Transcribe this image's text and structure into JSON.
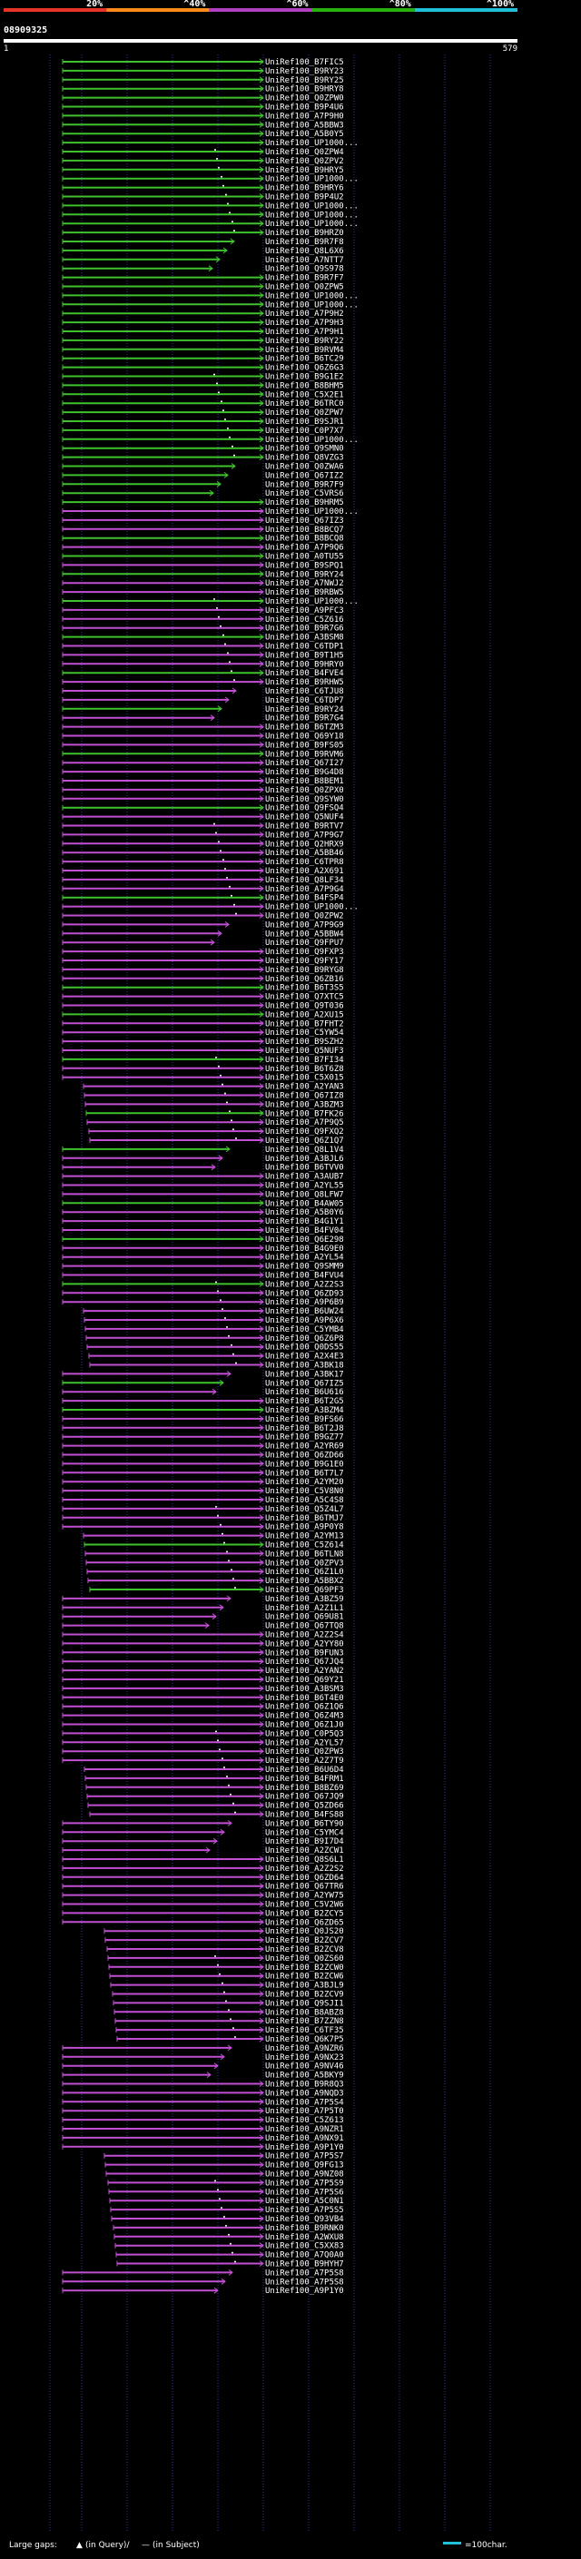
{
  "colors": {
    "bg": "#000000",
    "bin20": "#e8332b",
    "bin40": "#ff8c1a",
    "bin60": "#b040c0",
    "bin80": "#29b30e",
    "bin100": "#22c0d8",
    "magenta_hit": "#c24fd3",
    "green_hit": "#3fc22e",
    "query_bar": "#ffffff",
    "grid": "#2a3aa8",
    "text": "#ffffff",
    "marker": "#ffffff"
  },
  "header": {
    "scale_labels": [
      "20%",
      "^40%",
      "^60%",
      "^80%",
      "^100%"
    ],
    "query_id": "08909325",
    "start_coord": "1",
    "end_coord": "579"
  },
  "legend": {
    "large_gaps_label": "Large gaps:",
    "in_query_label": "(in Query)/",
    "in_subject_label": "(in Subject)",
    "scale_label": "=100char."
  },
  "hits": [
    "UniRef100_B7FIC5",
    "UniRef100_B9RY23",
    "UniRef100_B9RY25",
    "UniRef100_B9HRY8",
    "UniRef100_Q0ZPW0",
    "UniRef100_B9P4U6",
    "UniRef100_A7P9H0",
    "UniRef100_A5BBW3",
    "UniRef100_A5B0Y5",
    "UniRef100_UP1000...",
    "UniRef100_Q0ZPW4",
    "UniRef100_Q0ZPV2",
    "UniRef100_B9HRY5",
    "UniRef100_UP1000...",
    "UniRef100_B9HRY6",
    "UniRef100_B9P4U2",
    "UniRef100_UP1000...",
    "UniRef100_UP1000...",
    "UniRef100_UP1000...",
    "UniRef100_B9HRZ0",
    "UniRef100_B9R7F8",
    "UniRef100_Q8L6X6",
    "UniRef100_A7NTT7",
    "UniRef100_Q9S978",
    "UniRef100_B9R7F7",
    "UniRef100_Q0ZPW5",
    "UniRef100_UP1000...",
    "UniRef100_UP1000...",
    "UniRef100_A7P9H2",
    "UniRef100_A7P9H3",
    "UniRef100_A7P9H1",
    "UniRef100_B9RY22",
    "UniRef100_B9RVM4",
    "UniRef100_B6TC29",
    "UniRef100_Q6Z6G3",
    "UniRef100_B9G1E2",
    "UniRef100_B8BHM5",
    "UniRef100_C5X2E1",
    "UniRef100_B6TRC0",
    "UniRef100_Q0ZPW7",
    "UniRef100_B9SJR1",
    "UniRef100_C0P7X7",
    "UniRef100_UP1000...",
    "UniRef100_Q9SMN0",
    "UniRef100_Q8VZG3",
    "UniRef100_Q0ZWA6",
    "UniRef100_Q67IZ2",
    "UniRef100_B9R7F9",
    "UniRef100_C5VRS6",
    "UniRef100_B9HRM5",
    "UniRef100_UP1000...",
    "UniRef100_Q67IZ3",
    "UniRef100_B8BCQ7",
    "UniRef100_B8BCQ8",
    "UniRef100_A7P9Q6",
    "UniRef100_A0TU55",
    "UniRef100_B9SPQ1",
    "UniRef100_B9RY24",
    "UniRef100_A7NWJ2",
    "UniRef100_B9RBW5",
    "UniRef100_UP1000...",
    "UniRef100_A9PFC3",
    "UniRef100_C5Z616",
    "UniRef100_B9R7G6",
    "UniRef100_A3BSM8",
    "UniRef100_C6TDP1",
    "UniRef100_B9T1H5",
    "UniRef100_B9HRY0",
    "UniRef100_B4FVE4",
    "UniRef100_B9RHW5",
    "UniRef100_C6TJU8",
    "UniRef100_C6TDP7",
    "UniRef100_B9RY24",
    "UniRef100_B9R7G4",
    "UniRef100_B6TZM3",
    "UniRef100_Q69Y18",
    "UniRef100_B9FS05",
    "UniRef100_B9RVM6",
    "UniRef100_Q67I27",
    "UniRef100_B9G4D8",
    "UniRef100_B8BEM1",
    "UniRef100_Q0ZPX0",
    "UniRef100_Q9SYW0",
    "UniRef100_Q9FSQ4",
    "UniRef100_Q5NUF4",
    "UniRef100_B9RTV7",
    "UniRef100_A7P9G7",
    "UniRef100_Q2HRX9",
    "UniRef100_A5BB46",
    "UniRef100_C6TPR8",
    "UniRef100_A2X691",
    "UniRef100_Q8LF34",
    "UniRef100_A7P9G4",
    "UniRef100_B4FSP4",
    "UniRef100_UP1000...",
    "UniRef100_Q0ZPW2",
    "UniRef100_A7P9G9",
    "UniRef100_A5BBW4",
    "UniRef100_Q9FPU7",
    "UniRef100_Q9FXP3",
    "UniRef100_Q9FY17",
    "UniRef100_B9RYG8",
    "UniRef100_Q6ZB16",
    "UniRef100_B6T3S5",
    "UniRef100_Q7XTC5",
    "UniRef100_Q9T036",
    "UniRef100_A2XU15",
    "UniRef100_B7FHT2",
    "UniRef100_C5YW54",
    "UniRef100_B9SZH2",
    "UniRef100_Q5NUF3",
    "UniRef100_B7FI34",
    "UniRef100_B6T6Z8",
    "UniRef100_C5X015",
    "UniRef100_A2YAN3",
    "UniRef100_Q67IZ8",
    "UniRef100_A3BZM3",
    "UniRef100_B7FK26",
    "UniRef100_A7P9Q5",
    "UniRef100_Q9FXQ2",
    "UniRef100_Q6Z1Q7",
    "UniRef100_Q8L1V4",
    "UniRef100_A3BJL6",
    "UniRef100_B6TVV0",
    "UniRef100_A3AUB7",
    "UniRef100_A2YL55",
    "UniRef100_Q8LFW7",
    "UniRef100_B4AW05",
    "UniRef100_A5B0Y6",
    "UniRef100_B4G1Y1",
    "UniRef100_B4FV04",
    "UniRef100_Q6E298",
    "UniRef100_B4G9E0",
    "UniRef100_A2YL54",
    "UniRef100_Q9SMM9",
    "UniRef100_B4FVU4",
    "UniRef100_A2Z2S3",
    "UniRef100_Q6ZD93",
    "UniRef100_A9P6B9",
    "UniRef100_B6UW24",
    "UniRef100_A9P6X6",
    "UniRef100_C5YMB4",
    "UniRef100_Q6Z6P8",
    "UniRef100_Q0DS55",
    "UniRef100_A2X4E3",
    "UniRef100_A3BK18",
    "UniRef100_A3BK17",
    "UniRef100_Q67IZ5",
    "UniRef100_B6U616",
    "UniRef100_B6T2G5",
    "UniRef100_A3BZM4",
    "UniRef100_B9FS66",
    "UniRef100_B6T2J8",
    "UniRef100_B9GZ77",
    "UniRef100_A2YR69",
    "UniRef100_Q6ZD66",
    "UniRef100_B9G1E0",
    "UniRef100_B6T7L7",
    "UniRef100_A2YM20",
    "UniRef100_C5V8N0",
    "UniRef100_A5C4S8",
    "UniRef100_Q5Z4L7",
    "UniRef100_B6TMJ7",
    "UniRef100_A9P0Y8",
    "UniRef100_A2YM13",
    "UniRef100_C5Z614",
    "UniRef100_B6TLN8",
    "UniRef100_Q0ZPV3",
    "UniRef100_Q6Z1L0",
    "UniRef100_A5BBX2",
    "UniRef100_Q69PF3",
    "UniRef100_A3BZ59",
    "UniRef100_A2Z1L1",
    "UniRef100_Q69U81",
    "UniRef100_Q67TQ8",
    "UniRef100_A2Z2S4",
    "UniRef100_A2YY80",
    "UniRef100_B9FUN3",
    "UniRef100_Q67JQ4",
    "UniRef100_A2YAN2",
    "UniRef100_Q69Y21",
    "UniRef100_A3BSM3",
    "UniRef100_B6T4E0",
    "UniRef100_Q6Z1Q6",
    "UniRef100_Q6Z4M3",
    "UniRef100_Q6Z1J0",
    "UniRef100_C0P5Q3",
    "UniRef100_A2YL57",
    "UniRef100_Q0ZPW3",
    "UniRef100_A2Z7T9",
    "UniRef100_B6U6D4",
    "UniRef100_B4FRM1",
    "UniRef100_B8BZ69",
    "UniRef100_Q67JQ9",
    "UniRef100_Q5ZD66",
    "UniRef100_B4FS88",
    "UniRef100_B6TY90",
    "UniRef100_C5YMC4",
    "UniRef100_B9I7D4",
    "UniRef100_A2ZCW1",
    "UniRef100_Q8S6L1",
    "UniRef100_A2Z2S2",
    "UniRef100_Q6ZD64",
    "UniRef100_Q67TR6",
    "UniRef100_A2YW75",
    "UniRef100_C5V2W6",
    "UniRef100_B2ZCY5",
    "UniRef100_Q6ZD65",
    "UniRef100_Q0JS20",
    "UniRef100_B2ZCV7",
    "UniRef100_B2ZCV8",
    "UniRef100_Q0ZS60",
    "UniRef100_B2ZCW0",
    "UniRef100_B2ZCW6",
    "UniRef100_A3BJL9",
    "UniRef100_B2ZCV9",
    "UniRef100_Q9SJI1",
    "UniRef100_B8ABZ8",
    "UniRef100_B7ZZN8",
    "UniRef100_C6TF35",
    "UniRef100_Q6K7P5",
    "UniRef100_A9NZR6",
    "UniRef100_A9NX23",
    "UniRef100_A9NV46",
    "UniRef100_A5BKY9",
    "UniRef100_B9R8Q3",
    "UniRef100_A9NQD3",
    "UniRef100_A7P5S4",
    "UniRef100_A7P5T0",
    "UniRef100_C5Z613",
    "UniRef100_A9NZR1",
    "UniRef100_A9NX91",
    "UniRef100_A9P1Y0",
    "UniRef100_A7P5S7",
    "UniRef100_Q9FG13",
    "UniRef100_A9NZ08",
    "UniRef100_A7P5S9",
    "UniRef100_A7P5S6",
    "UniRef100_A5C0N1",
    "UniRef100_A7P5S5",
    "UniRef100_Q93VB4",
    "UniRef100_B9RNK0",
    "UniRef100_A2WXU8",
    "UniRef100_C5XX83",
    "UniRef100_A7Q0A0",
    "UniRef100_B9HYH7",
    "UniRef100_A7P5S8",
    "UniRef100_A7P5S8",
    "UniRef100_A9P1Y0"
  ]
}
